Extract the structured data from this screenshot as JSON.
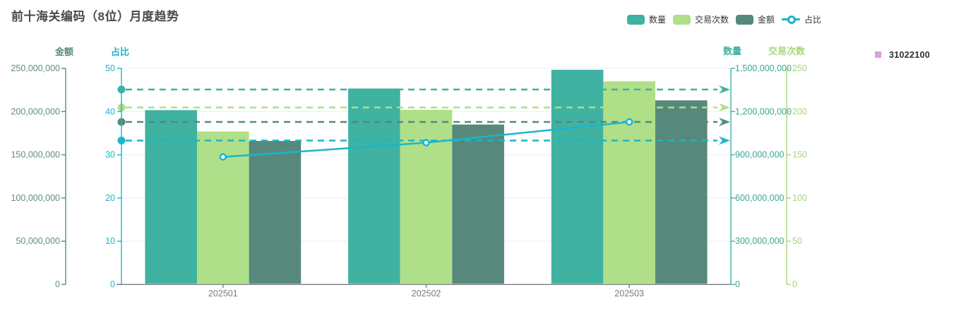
{
  "title": "前十海关编码（8位）月度趋势",
  "legend": {
    "items": [
      {
        "label": "数量",
        "icon": "round-rect-swatch",
        "color": "#3fb2a1"
      },
      {
        "label": "交易次数",
        "icon": "round-rect-swatch",
        "color": "#afdf88"
      },
      {
        "label": "金额",
        "icon": "round-rect-swatch",
        "color": "#56897b"
      },
      {
        "label": "占比",
        "icon": "line-circle-swatch",
        "color": "#1ab6cb"
      }
    ]
  },
  "side_legend": {
    "label": "31022100",
    "color": "#d9a0dd"
  },
  "chart_data": {
    "type": "bar",
    "note": "combo chart: 3 bar series + 1 line series, 4 y-axes, dashed average mark-lines with start dot and end arrow",
    "categories": [
      "202501",
      "202502",
      "202503"
    ],
    "series": [
      {
        "name": "数量",
        "key": "quantity",
        "type": "bar",
        "axis": "quantity",
        "color": "#3fb2a1",
        "values": [
          1210000000,
          1360000000,
          1490000000
        ],
        "average": 1353333333
      },
      {
        "name": "交易次数",
        "key": "transactions",
        "type": "bar",
        "axis": "transactions",
        "color": "#afdf88",
        "values": [
          177,
          202,
          235
        ],
        "average": 204.7
      },
      {
        "name": "金额",
        "key": "amount",
        "type": "bar",
        "axis": "amount",
        "color": "#56897b",
        "values": [
          166000000,
          185000000,
          213000000
        ],
        "average": 188000000
      },
      {
        "name": "占比",
        "key": "ratio",
        "type": "line",
        "axis": "ratio",
        "color": "#1ab6cb",
        "values": [
          29.5,
          32.8,
          37.6
        ],
        "average": 33.3
      }
    ],
    "axes": {
      "amount": {
        "name": "金额",
        "side": "left-outer",
        "color": "#5b8a7d",
        "label_color": "#5f8d82",
        "min": 0,
        "max": 250000000,
        "ticks": [
          "0",
          "50,000,000",
          "100,000,000",
          "150,000,000",
          "200,000,000",
          "250,000,000"
        ]
      },
      "ratio": {
        "name": "占比",
        "side": "left-inner",
        "color": "#1ab6cb",
        "label_color": "#1ab6cb",
        "min": 0,
        "max": 50,
        "ticks": [
          "0",
          "10",
          "20",
          "30",
          "40",
          "50"
        ]
      },
      "quantity": {
        "name": "数量",
        "side": "right-inner",
        "color": "#3fb2a1",
        "label_color": "#3aa695",
        "min": 0,
        "max": 1500000000,
        "ticks": [
          "0",
          "300,000,000",
          "600,000,000",
          "900,000,000",
          "1,200,000,000",
          "1,500,000,000"
        ]
      },
      "transactions": {
        "name": "交易次数",
        "side": "right-outer",
        "color": "#a8d87f",
        "label_color": "#a5d67c",
        "min": 0,
        "max": 250,
        "ticks": [
          "0",
          "50",
          "100",
          "150",
          "200",
          "250"
        ]
      }
    },
    "x_axis": {
      "label_color": "#757a80",
      "line_color": "#6e7079"
    },
    "grid_line_color": "#e8edf3",
    "legend_position": "top-right"
  }
}
